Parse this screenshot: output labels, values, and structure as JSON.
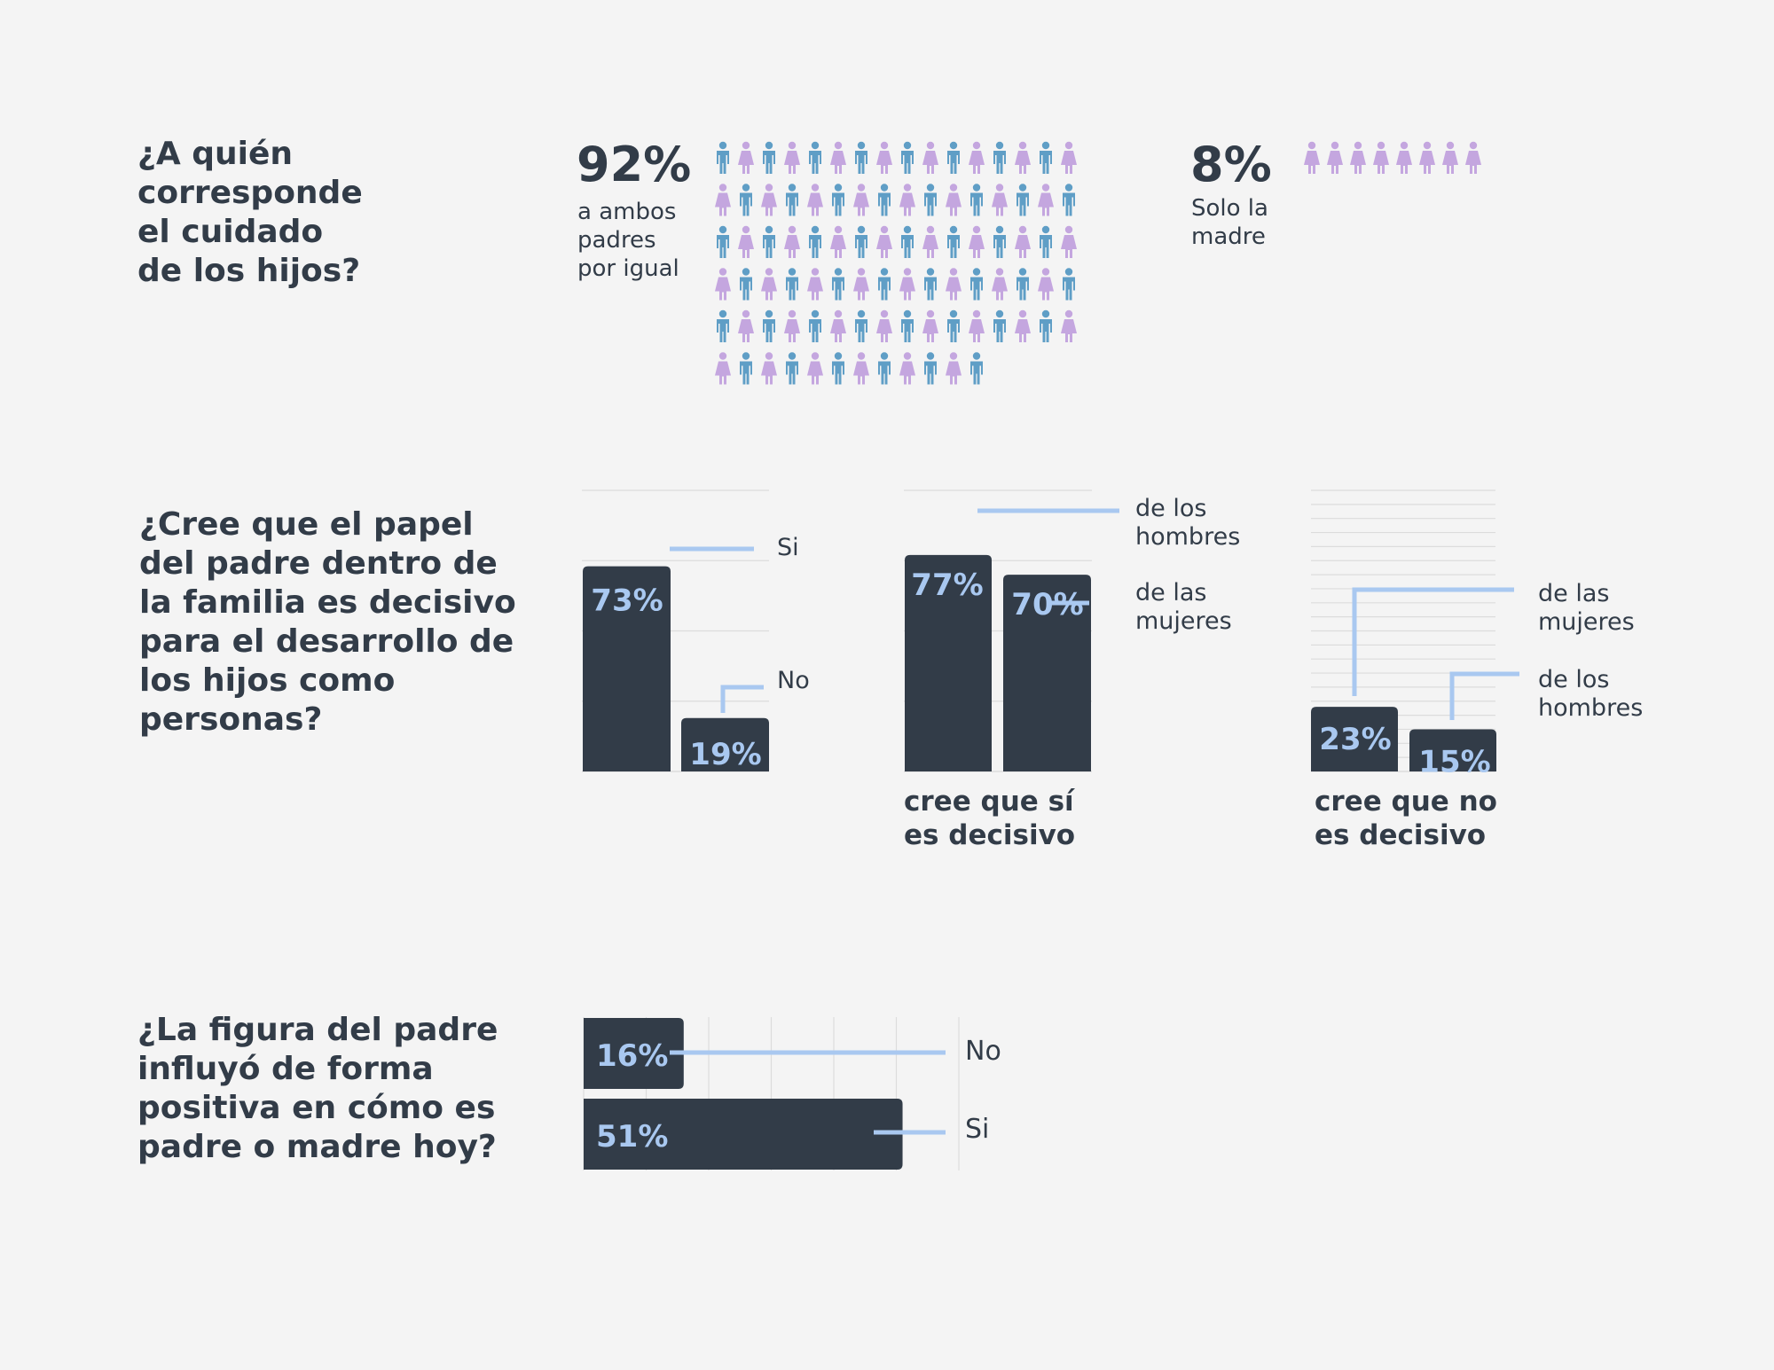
{
  "colors": {
    "background": "#f4f4f4",
    "dark": "#323c48",
    "accent": "#a9c8f0",
    "male_icon": "#5f9ec6",
    "female_icon": "#c4a6df",
    "grid": "#dcdcdc"
  },
  "icons": {
    "male": "man-icon",
    "female": "woman-icon"
  },
  "section1": {
    "question": "¿A quién\ncorresponde\nel cuidado\nde los hijos?",
    "both": {
      "value": "92%",
      "label": "a ambos\npadres\npor igual"
    },
    "mother": {
      "value": "8%",
      "label": "Solo la\nmadre"
    }
  },
  "section2": {
    "question": "¿Cree que el papel\ndel padre dentro de\nla familia es decisivo\npara el desarrollo de\nlos hijos como\npersonas?",
    "group_yes_label": "cree que sí\nes decisivo",
    "group_no_label": "cree que no\nes decisivo"
  },
  "section3": {
    "question": "¿La figura del padre\ninfluyó de forma\npositiva en cómo es\npadre o madre hoy?"
  },
  "chart_data": [
    {
      "type": "pictogram",
      "categories": [
        "a ambos padres por igual",
        "Solo la madre"
      ],
      "values": [
        92,
        8
      ],
      "unit": "%"
    },
    {
      "type": "bar",
      "categories": [
        "Si",
        "No"
      ],
      "values": [
        73,
        19
      ],
      "value_labels": [
        "73%",
        "19%"
      ],
      "ylim": [
        0,
        100
      ],
      "grid": true
    },
    {
      "type": "bar",
      "categories": [
        "de los hombres",
        "de las mujeres"
      ],
      "values": [
        77,
        70
      ],
      "value_labels": [
        "77%",
        "70%"
      ],
      "ylim": [
        0,
        100
      ],
      "grid": true
    },
    {
      "type": "bar",
      "categories": [
        "de las mujeres",
        "de los hombres"
      ],
      "values": [
        23,
        15
      ],
      "value_labels": [
        "23%",
        "15%"
      ],
      "ylim": [
        0,
        100
      ],
      "grid": true
    },
    {
      "type": "bar",
      "orientation": "horizontal",
      "categories": [
        "No",
        "Si"
      ],
      "values": [
        16,
        51
      ],
      "value_labels": [
        "16%",
        "51%"
      ],
      "xlim": [
        0,
        60
      ],
      "grid": true
    }
  ]
}
